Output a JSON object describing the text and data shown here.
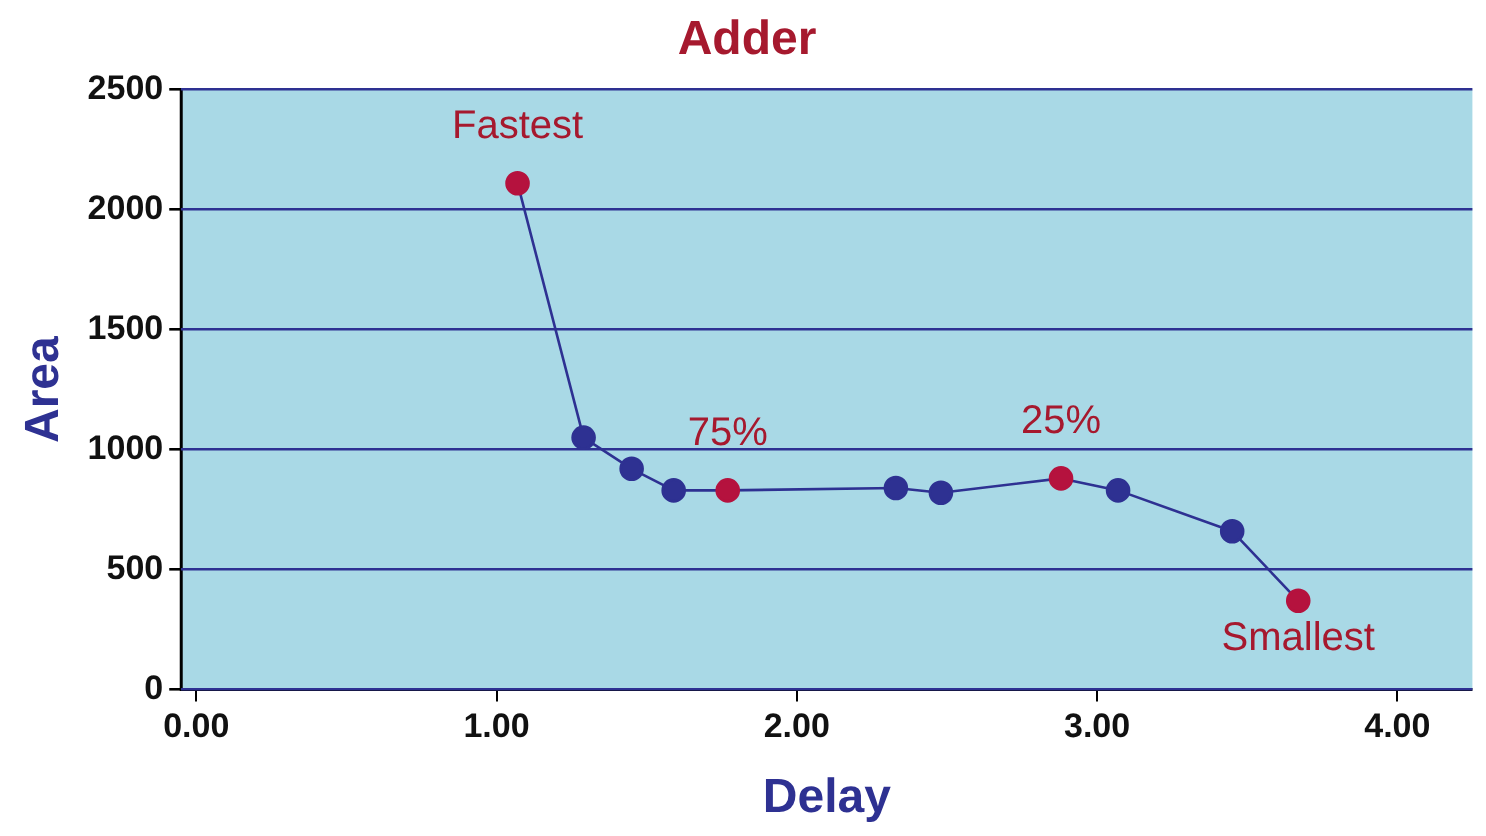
{
  "chart_data": {
    "type": "line",
    "title": "Adder",
    "xlabel": "Delay",
    "ylabel": "Area",
    "x": [
      1.07,
      1.29,
      1.45,
      1.59,
      1.77,
      2.33,
      2.48,
      2.88,
      3.07,
      3.45,
      3.67
    ],
    "series": [
      {
        "color": "#2e3192",
        "colors": [
          "#b5123e",
          "#2e3192",
          "#2e3192",
          "#2e3192",
          "#b5123e",
          "#2e3192",
          "#2e3192",
          "#b5123e",
          "#2e3192",
          "#2e3192",
          "#b5123e"
        ],
        "values": [
          2110,
          1050,
          920,
          830,
          830,
          840,
          820,
          880,
          830,
          660,
          370
        ]
      }
    ],
    "annotations": [
      {
        "text": "Fastest",
        "x": 1.07,
        "y": 2110
      },
      {
        "text": "75%",
        "x": 1.77,
        "y": 830
      },
      {
        "text": "25%",
        "x": 2.88,
        "y": 880
      },
      {
        "text": "Smallest",
        "x": 3.67,
        "y": 370
      }
    ],
    "xlim": [
      -0.05,
      4.25
    ],
    "xticks": [
      {
        "value": 0,
        "label": "0.00"
      },
      {
        "value": 1,
        "label": "1.00"
      },
      {
        "value": 2,
        "label": "2.00"
      },
      {
        "value": 3,
        "label": "3.00"
      },
      {
        "value": 4,
        "label": "4.00"
      }
    ],
    "ylim": [
      0,
      2500
    ],
    "yticks": [
      0,
      500,
      1000,
      1500,
      2000,
      2500
    ],
    "grid": "y",
    "legend": false,
    "marker": "circle",
    "line_style": "solid"
  }
}
